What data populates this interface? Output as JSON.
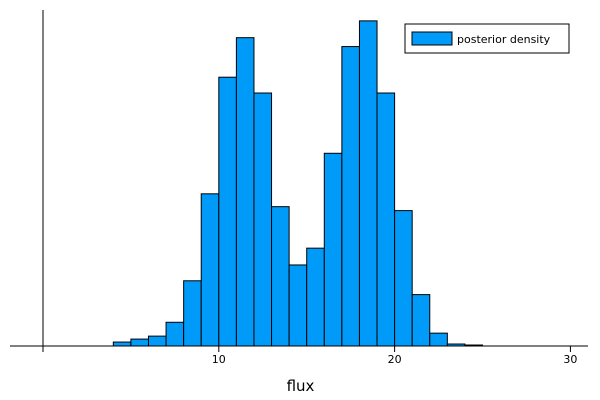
{
  "chart_data": {
    "type": "bar",
    "subtype": "histogram",
    "bin_width": 1,
    "bins": [
      {
        "x0": 0,
        "x1": 1,
        "value": 0
      },
      {
        "x0": 1,
        "x1": 2,
        "value": 0
      },
      {
        "x0": 2,
        "x1": 3,
        "value": 0
      },
      {
        "x0": 3,
        "x1": 4,
        "value": 0
      },
      {
        "x0": 4,
        "x1": 5,
        "value": 0.004
      },
      {
        "x0": 5,
        "x1": 6,
        "value": 0.007
      },
      {
        "x0": 6,
        "x1": 7,
        "value": 0.01
      },
      {
        "x0": 7,
        "x1": 8,
        "value": 0.024
      },
      {
        "x0": 8,
        "x1": 9,
        "value": 0.066
      },
      {
        "x0": 9,
        "x1": 10,
        "value": 0.154
      },
      {
        "x0": 10,
        "x1": 11,
        "value": 0.272
      },
      {
        "x0": 11,
        "x1": 12,
        "value": 0.312
      },
      {
        "x0": 12,
        "x1": 13,
        "value": 0.256
      },
      {
        "x0": 13,
        "x1": 14,
        "value": 0.141
      },
      {
        "x0": 14,
        "x1": 15,
        "value": 0.082
      },
      {
        "x0": 15,
        "x1": 16,
        "value": 0.099
      },
      {
        "x0": 16,
        "x1": 17,
        "value": 0.195
      },
      {
        "x0": 17,
        "x1": 18,
        "value": 0.303
      },
      {
        "x0": 18,
        "x1": 19,
        "value": 0.329
      },
      {
        "x0": 19,
        "x1": 20,
        "value": 0.256
      },
      {
        "x0": 20,
        "x1": 21,
        "value": 0.137
      },
      {
        "x0": 21,
        "x1": 22,
        "value": 0.052
      },
      {
        "x0": 22,
        "x1": 23,
        "value": 0.013
      },
      {
        "x0": 23,
        "x1": 24,
        "value": 0.002
      },
      {
        "x0": 24,
        "x1": 25,
        "value": 0.001
      },
      {
        "x0": 25,
        "x1": 26,
        "value": 0
      },
      {
        "x0": 26,
        "x1": 27,
        "value": 0
      },
      {
        "x0": 27,
        "x1": 28,
        "value": 0
      },
      {
        "x0": 28,
        "x1": 29,
        "value": 0
      },
      {
        "x0": 29,
        "x1": 30,
        "value": 0
      }
    ],
    "series": [
      {
        "name": "posterior density",
        "color": "#009af9"
      }
    ],
    "xlabel": "flux",
    "ylabel": "",
    "xlim": [
      0,
      31
    ],
    "ylim": [
      0,
      0.34
    ],
    "xticks": [
      10,
      20,
      30
    ],
    "yticks_shown": false,
    "grid": false,
    "legend_position": "top-right"
  }
}
